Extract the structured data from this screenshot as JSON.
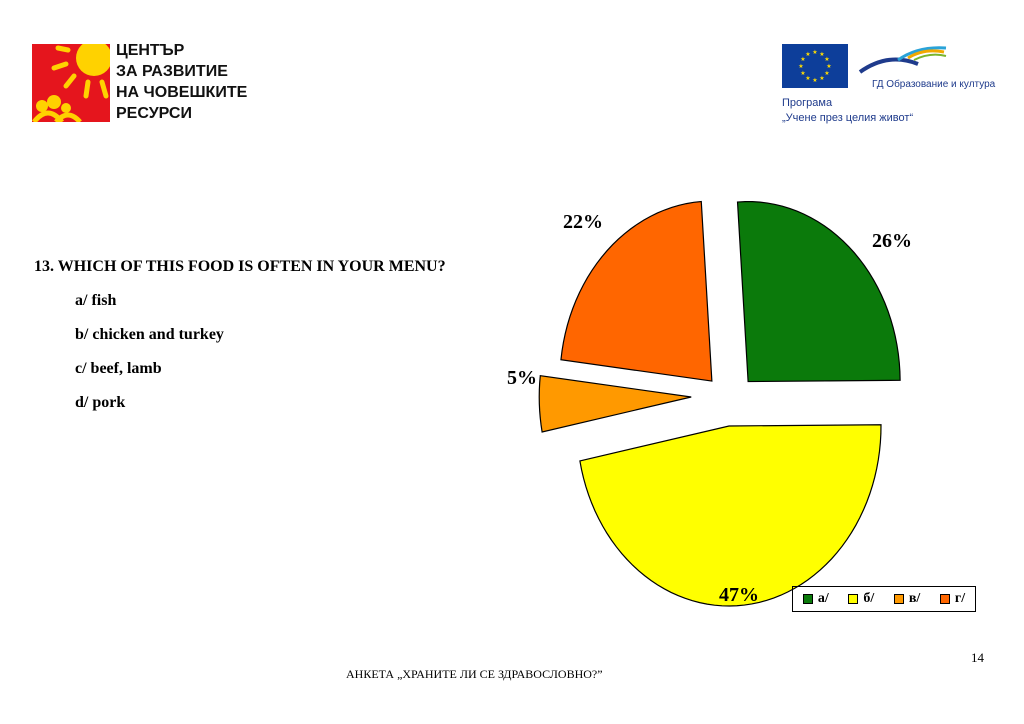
{
  "header": {
    "org_lines": [
      "ЦЕНТЪР",
      "ЗА РАЗВИТИЕ",
      "НА ЧОВЕШКИТЕ",
      "РЕСУРСИ"
    ],
    "eu_dg": "ГД Образование и култура",
    "eu_program_line1": "Програма",
    "eu_program_line2": "„Учене през целия живот“"
  },
  "question": {
    "title": "13. WHICH OF THIS FOOD IS OFTEN IN YOUR MENU?",
    "options": [
      "a/ fish",
      "b/ chicken and turkey",
      "c/ beef, lamb",
      "d/ pork"
    ]
  },
  "chart_data": {
    "type": "pie",
    "categories": [
      "а/",
      "б/",
      "в/",
      "г/"
    ],
    "values": [
      26,
      47,
      5,
      22
    ],
    "labels": [
      "26%",
      "47%",
      "5%",
      "22%"
    ],
    "colors": [
      "#0b7a0b",
      "#ffff00",
      "#ff9900",
      "#ff6600"
    ],
    "legend_position": "bottom-right",
    "exploded": true,
    "three_d": true
  },
  "footer": {
    "text": "АНКЕТА „ХРАНИТЕ ЛИ СЕ ЗДРАВОСЛОВНО?”",
    "page_number": "14"
  }
}
